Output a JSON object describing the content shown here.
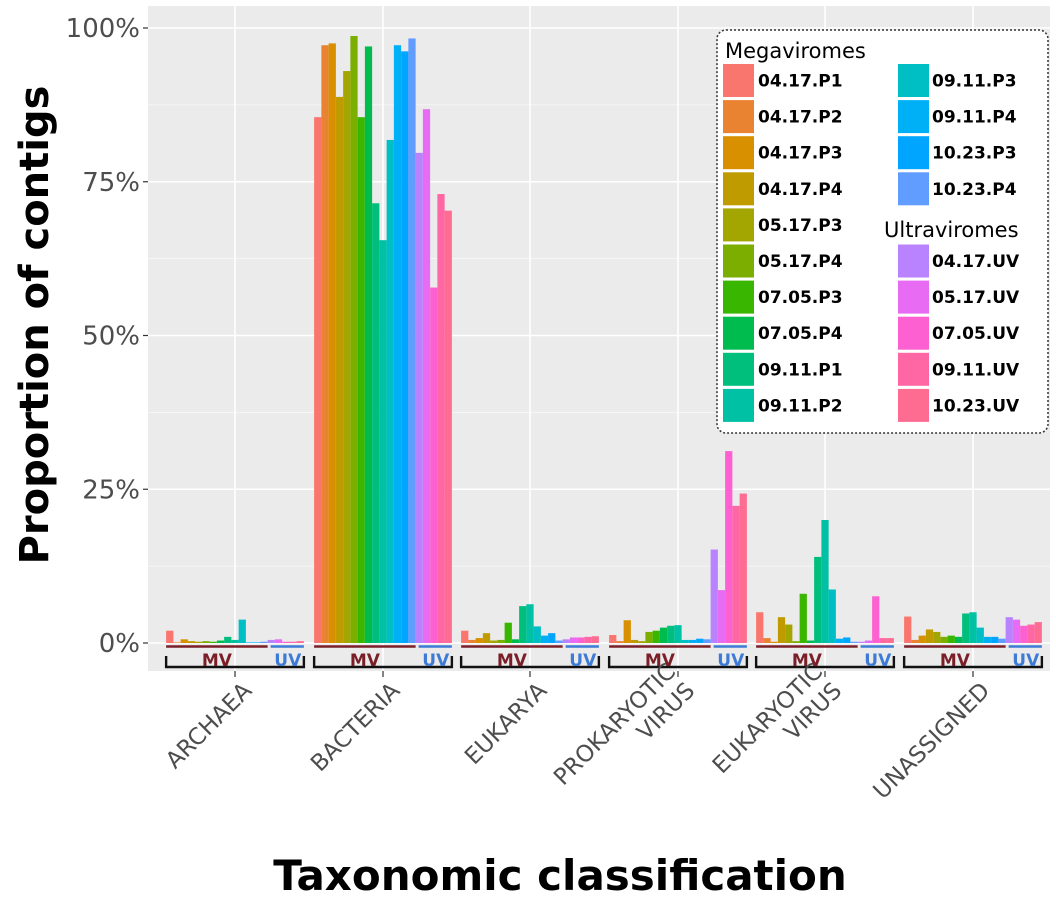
{
  "chart_data": {
    "type": "bar",
    "xlabel": "Taxonomic classification",
    "ylabel": "Proportion of contigs",
    "ylim": [
      0,
      100
    ],
    "y_ticks": [
      "0%",
      "25%",
      "50%",
      "75%",
      "100%"
    ],
    "y_tick_values": [
      0,
      25,
      50,
      75,
      100
    ],
    "grid": true,
    "legend_position": "top-right",
    "legend_groups": [
      {
        "title": "Megaviromes",
        "from": 0,
        "to": 14
      },
      {
        "title": "Ultraviromes",
        "from": 14,
        "to": 19
      }
    ],
    "group_tags": {
      "mv": "MV",
      "uv": "UV"
    },
    "categories": [
      "ARCHAEA",
      "BACTERIA",
      "EUKARYA",
      "PROKARYOTIC VIRUS",
      "EUKARYOTIC VIRUS",
      "UNASSIGNED"
    ],
    "category_lines": [
      [
        "ARCHAEA"
      ],
      [
        "BACTERIA"
      ],
      [
        "EUKARYA"
      ],
      [
        "PROKARYOTIC",
        "VIRUS"
      ],
      [
        "EUKARYOTIC",
        "VIRUS"
      ],
      [
        "UNASSIGNED"
      ]
    ],
    "series": [
      {
        "name": "04.17.P1",
        "color": "#F8766D",
        "values": [
          2.0,
          85.5,
          2.0,
          1.3,
          5.0,
          4.3
        ]
      },
      {
        "name": "04.17.P2",
        "color": "#EA8331",
        "values": [
          0.1,
          97.2,
          0.5,
          0.3,
          0.8,
          0.5
        ]
      },
      {
        "name": "04.17.P3",
        "color": "#D89000",
        "values": [
          0.6,
          97.5,
          0.8,
          3.7,
          0.2,
          1.2
        ]
      },
      {
        "name": "04.17.P4",
        "color": "#C09B00",
        "values": [
          0.3,
          88.8,
          1.6,
          0.5,
          4.2,
          2.2
        ]
      },
      {
        "name": "05.17.P3",
        "color": "#A3A500",
        "values": [
          0.2,
          93.0,
          0.4,
          0.3,
          3.0,
          1.8
        ]
      },
      {
        "name": "05.17.P4",
        "color": "#7CAE00",
        "values": [
          0.3,
          98.7,
          0.5,
          1.8,
          0.3,
          1.0
        ]
      },
      {
        "name": "07.05.P3",
        "color": "#39B600",
        "values": [
          0.2,
          85.5,
          3.3,
          2.0,
          8.0,
          1.2
        ]
      },
      {
        "name": "07.05.P4",
        "color": "#00BB4E",
        "values": [
          0.4,
          97.0,
          0.6,
          2.5,
          0.4,
          1.0
        ]
      },
      {
        "name": "09.11.P1",
        "color": "#00BF7D",
        "values": [
          1.0,
          71.5,
          6.0,
          2.8,
          14.0,
          4.8
        ]
      },
      {
        "name": "09.11.P2",
        "color": "#00C1A3",
        "values": [
          0.5,
          65.5,
          6.3,
          2.9,
          20.0,
          5.0
        ]
      },
      {
        "name": "09.11.P3",
        "color": "#00BFC4",
        "values": [
          3.8,
          81.8,
          2.7,
          0.5,
          8.7,
          2.5
        ]
      },
      {
        "name": "09.11.P4",
        "color": "#00B0F6",
        "values": [
          0.1,
          97.2,
          1.2,
          0.5,
          0.7,
          1.0
        ]
      },
      {
        "name": "10.23.P3",
        "color": "#00A5FF",
        "values": [
          0.1,
          96.2,
          1.6,
          0.7,
          0.9,
          1.0
        ]
      },
      {
        "name": "10.23.P4",
        "color": "#619CFF",
        "values": [
          0.2,
          98.3,
          0.4,
          0.6,
          0.2,
          0.7
        ]
      },
      {
        "name": "04.17.UV",
        "color": "#B983FF",
        "values": [
          0.5,
          79.7,
          0.6,
          15.2,
          0.2,
          4.2
        ]
      },
      {
        "name": "05.17.UV",
        "color": "#E76BF3",
        "values": [
          0.6,
          86.8,
          0.9,
          8.6,
          0.4,
          3.8
        ]
      },
      {
        "name": "07.05.UV",
        "color": "#FD61D1",
        "values": [
          0.2,
          57.8,
          0.9,
          31.2,
          7.6,
          2.8
        ]
      },
      {
        "name": "09.11.UV",
        "color": "#FF67A4",
        "values": [
          0.2,
          73.0,
          1.0,
          22.3,
          0.8,
          3.0
        ]
      },
      {
        "name": "10.23.UV",
        "color": "#FF6C91",
        "values": [
          0.3,
          70.3,
          1.1,
          24.3,
          0.8,
          3.4
        ]
      }
    ],
    "colors": {
      "panel": "#EBEBEB",
      "grid": "#FFFFFF",
      "mv_tag": "#7A1F28",
      "uv_tag": "#3D7BD6",
      "text": "#000000",
      "tick_text": "#4D4D4D"
    }
  }
}
